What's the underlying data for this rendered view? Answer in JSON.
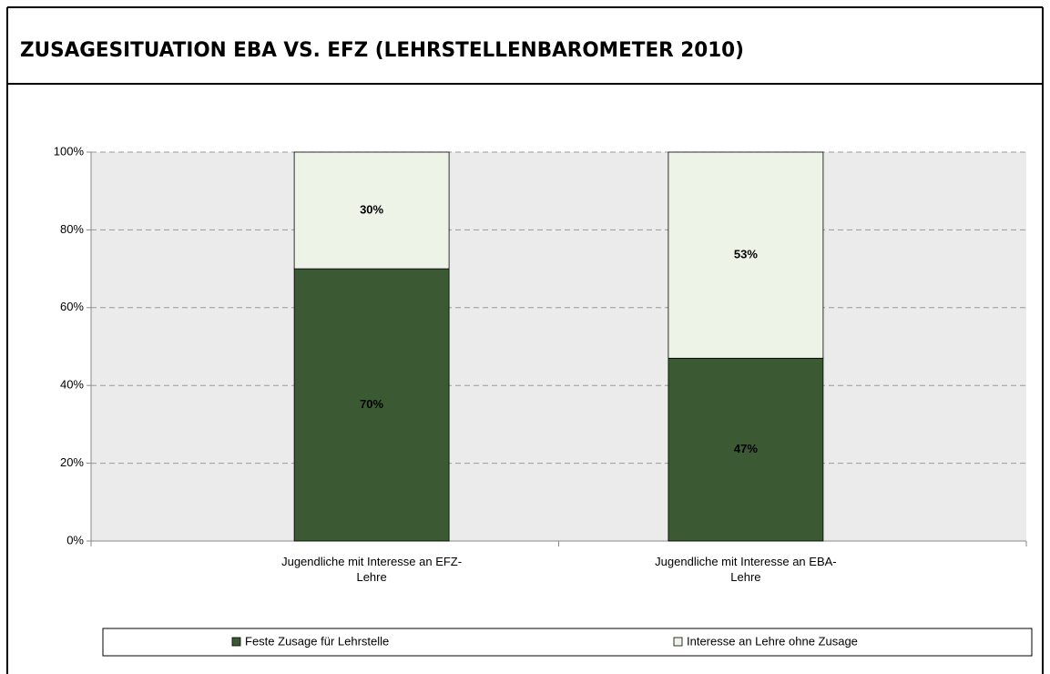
{
  "chart_data": {
    "type": "stacked-bar",
    "title": "ZUSAGESITUATION EBA VS. EFZ (LEHRSTELLENBAROMETER 2010)",
    "categories": [
      "Jugendliche mit Interesse an EFZ-Lehre",
      "Jugendliche mit Interesse an EBA-Lehre"
    ],
    "series": [
      {
        "name": "Feste Zusage für Lehrstelle",
        "color": "#3b5a33",
        "values": [
          70,
          47
        ],
        "value_labels": [
          "70%",
          "47%"
        ],
        "label_color": "#ffffff"
      },
      {
        "name": "Interesse an Lehre ohne Zusage",
        "color": "#eef3e8",
        "values": [
          30,
          53
        ],
        "value_labels": [
          "30%",
          "53%"
        ],
        "label_color": "#000000"
      }
    ],
    "ylim": [
      0,
      100
    ],
    "yticks": [
      {
        "value": 0,
        "label": "0%"
      },
      {
        "value": 20,
        "label": "20%"
      },
      {
        "value": 40,
        "label": "40%"
      },
      {
        "value": 60,
        "label": "60%"
      },
      {
        "value": 80,
        "label": "80%"
      },
      {
        "value": 100,
        "label": "100%"
      }
    ],
    "grid": true,
    "legend": "bottom"
  }
}
